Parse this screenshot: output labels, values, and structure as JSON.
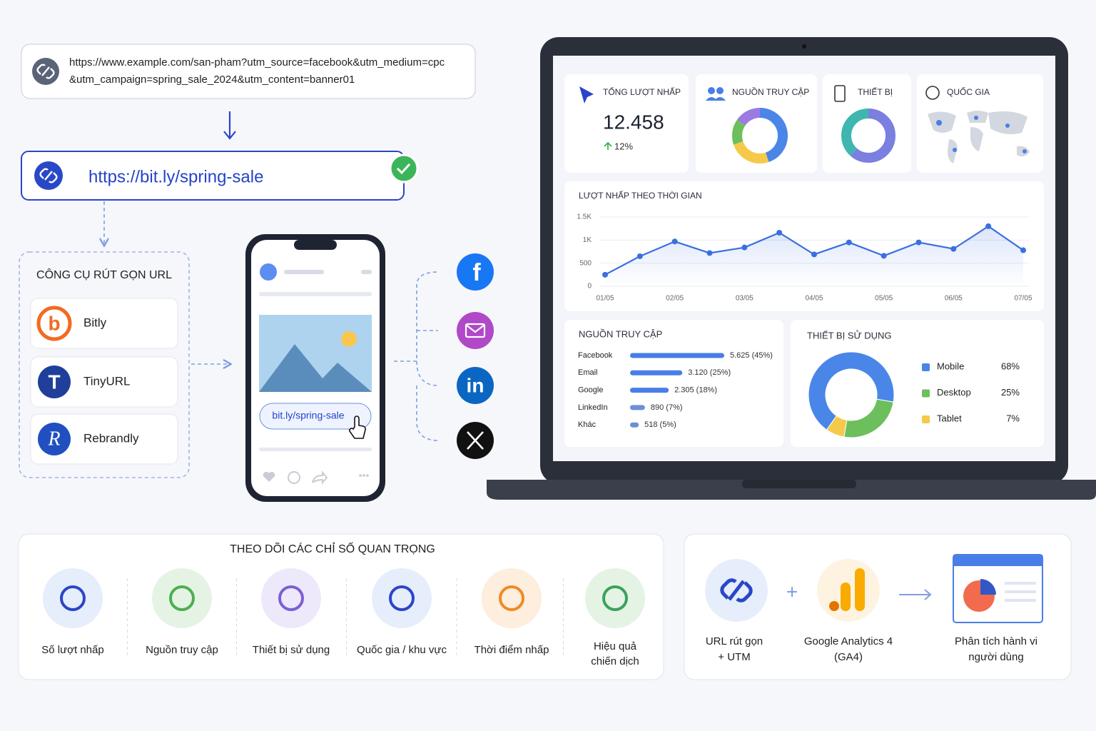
{
  "long_url": [
    "https://www.example.com/san-pham?utm_source=facebook&utm_medium=cpc",
    "&utm_campaign=spring_sale_2024&utm_content=banner01"
  ],
  "short_url": "https://bit.ly/spring-sale",
  "shortener": {
    "title": "CÔNG CỤ RÚT GỌN URL",
    "tools": [
      "Bitly",
      "TinyURL",
      "Rebrandly"
    ]
  },
  "phone": {
    "link": "bit.ly/spring-sale"
  },
  "dashboard": {
    "total_clicks": {
      "label": "TỔNG LƯỢT NHẤP",
      "value": "12.458",
      "change": "12%"
    },
    "sources_card": {
      "label": "NGUỒN TRUY CẬP"
    },
    "devices_card": {
      "label": "THIẾT BỊ"
    },
    "country_card": {
      "label": "QUỐC GIA"
    },
    "timeline": {
      "type": "line",
      "title": "LƯỢT NHẤP THEO THỜI GIAN",
      "categories": [
        "01/05",
        null,
        "02/05",
        null,
        "03/05",
        null,
        "04/05",
        null,
        "05/05",
        null,
        "06/05",
        null,
        "07/05"
      ],
      "values": [
        250,
        650,
        970,
        720,
        840,
        1160,
        690,
        950,
        660,
        950,
        810,
        1300,
        780
      ],
      "color": "#3b6fe0",
      "ylim": [
        0,
        1500
      ],
      "yticks": [
        0,
        500,
        {
          "value": 1000,
          "label": "1K"
        },
        {
          "value": 1500,
          "label": "1.5K"
        }
      ],
      "grid": true
    },
    "sources": {
      "type": "bar",
      "title": "NGUỒN TRUY CẬP",
      "categories": [
        "Facebook",
        "Email",
        "Google",
        "LinkedIn",
        "Khác"
      ],
      "values": [
        5625,
        3120,
        2305,
        890,
        518
      ],
      "value_labels": [
        "5.625 (45%)",
        "3.120 (25%)",
        "2.305 (18%)",
        "890 (7%)",
        "518 (5%)"
      ],
      "colors": [
        "#4a7de8",
        "#4a7de8",
        "#4a7de8",
        "#6d8fd6",
        "#6d8fd6"
      ]
    },
    "devices": {
      "type": "pie",
      "title": "THIẾT BỊ SỬ DỤNG",
      "categories": [
        "Mobile",
        "Desktop",
        "Tablet"
      ],
      "values": [
        68,
        25,
        7
      ],
      "value_labels": [
        "68%",
        "25%",
        "7%"
      ],
      "colors": [
        "#4a86e8",
        "#6cbf5c",
        "#f6c94a"
      ]
    }
  },
  "metrics": {
    "title": "THEO DÕI CÁC CHỈ SỐ QUAN TRỌNG",
    "items": [
      [
        "Số lượt nhấp"
      ],
      [
        "Nguồn truy cập"
      ],
      [
        "Thiết bị sử dụng"
      ],
      [
        "Quốc gia / khu vực"
      ],
      [
        "Thời điểm nhấp"
      ],
      [
        "Hiệu quả",
        "chiến dịch"
      ]
    ]
  },
  "flow": [
    [
      "URL rút gọn",
      "+ UTM"
    ],
    [
      "Google Analytics 4",
      "(GA4)"
    ],
    [
      "Phân tích hành vi",
      "người dùng"
    ]
  ]
}
